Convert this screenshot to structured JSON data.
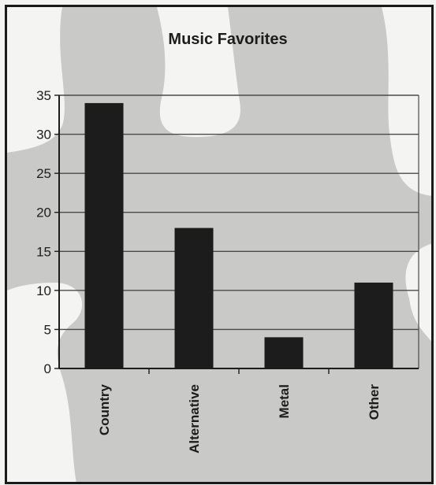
{
  "chart_data": {
    "type": "bar",
    "title": "Music Favorites",
    "categories": [
      "Country",
      "Alternative",
      "Metal",
      "Other"
    ],
    "values": [
      34,
      18,
      4,
      11
    ],
    "ylim": [
      0,
      35
    ],
    "yticks": [
      0,
      5,
      10,
      15,
      20,
      25,
      30,
      35
    ],
    "grid": true,
    "colors": {
      "bar": "#1c1c1c",
      "grid": "#4a4a4a",
      "background": "#f4f4f2",
      "puzzle": "#c9c9c7"
    }
  }
}
